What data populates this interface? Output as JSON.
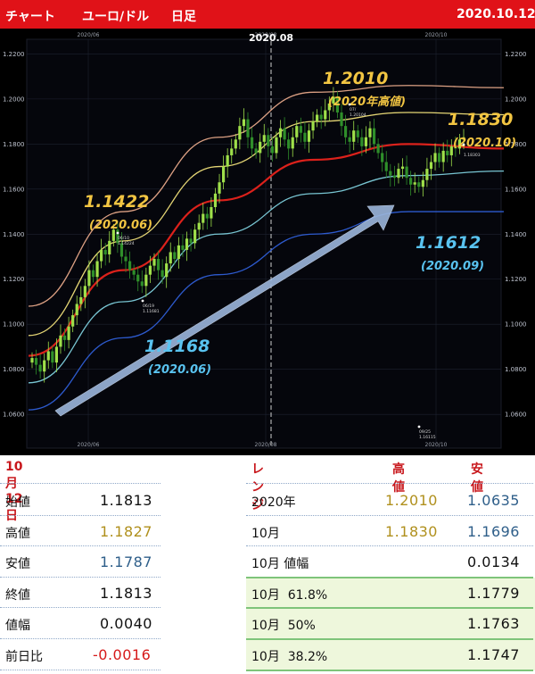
{
  "header": {
    "chart_label": "チャート",
    "pair": "ユーロ/ドル",
    "timeframe": "日足",
    "date": "2020.10.12"
  },
  "chart_data": {
    "type": "candlestick",
    "y_ticks": [
      "1.2200",
      "1.2000",
      "1.1800",
      "1.1600",
      "1.1400",
      "1.1200",
      "1.1000",
      "1.0800",
      "1.0600"
    ],
    "ylim": [
      1.045,
      1.2265
    ],
    "x_date_labels": [
      "2020/06",
      "2020/08",
      "2020/10"
    ],
    "marker_label": "2020.08",
    "closes_path": [
      1.085,
      1.082,
      1.079,
      1.084,
      1.088,
      1.083,
      1.09,
      1.095,
      1.093,
      1.099,
      1.104,
      1.109,
      1.112,
      1.117,
      1.124,
      1.121,
      1.128,
      1.133,
      1.131,
      1.137,
      1.142,
      1.136,
      1.13,
      1.128,
      1.124,
      1.122,
      1.119,
      1.117,
      1.122,
      1.126,
      1.129,
      1.124,
      1.121,
      1.127,
      1.132,
      1.129,
      1.135,
      1.133,
      1.138,
      1.136,
      1.142,
      1.145,
      1.149,
      1.147,
      1.152,
      1.158,
      1.163,
      1.17,
      1.175,
      1.178,
      1.182,
      1.188,
      1.191,
      1.183,
      1.178,
      1.176,
      1.181,
      1.184,
      1.179,
      1.176,
      1.183,
      1.187,
      1.182,
      1.178,
      1.183,
      1.188,
      1.185,
      1.181,
      1.186,
      1.19,
      1.193,
      1.191,
      1.195,
      1.198,
      1.201,
      1.194,
      1.188,
      1.183,
      1.181,
      1.186,
      1.183,
      1.179,
      1.183,
      1.187,
      1.18,
      1.176,
      1.172,
      1.168,
      1.166,
      1.165,
      1.169,
      1.17,
      1.165,
      1.162,
      1.163,
      1.161,
      1.164,
      1.169,
      1.172,
      1.176,
      1.172,
      1.177,
      1.175,
      1.179,
      1.178,
      1.182,
      1.183
    ],
    "bands": [
      {
        "name": "outer-upper",
        "color": "#e8a98a",
        "points": [
          1.108,
          1.15,
          1.183,
          1.203,
          1.206,
          1.205
        ]
      },
      {
        "name": "upper",
        "color": "#f0e07a",
        "points": [
          1.095,
          1.137,
          1.17,
          1.19,
          1.194,
          1.193
        ]
      },
      {
        "name": "middle",
        "color": "#e8231c",
        "points": [
          1.086,
          1.124,
          1.155,
          1.173,
          1.18,
          1.178
        ]
      },
      {
        "name": "lower",
        "color": "#7ed0dd",
        "points": [
          1.074,
          1.11,
          1.14,
          1.158,
          1.166,
          1.168
        ]
      },
      {
        "name": "outer-lower",
        "color": "#2f5fd8",
        "points": [
          1.062,
          1.094,
          1.122,
          1.14,
          1.15,
          1.15
        ]
      }
    ],
    "annotations": [
      {
        "value": "1.1422",
        "date": "(2020.06)",
        "style": "gold"
      },
      {
        "value": "1.2010",
        "date": "(2020年高値)",
        "style": "gold"
      },
      {
        "value": "1.1830",
        "date": "(2020.10)",
        "style": "gold"
      },
      {
        "value": "1.1168",
        "date": "(2020.06)",
        "style": "blue"
      },
      {
        "value": "1.1612",
        "date": "(2020.09)",
        "style": "blue"
      }
    ],
    "point_labels": [
      {
        "date": "06/10",
        "value": "1.14224"
      },
      {
        "date": "07/",
        "value": "1.20104"
      },
      {
        "date": "06/19",
        "value": "1.11681"
      },
      {
        "date": "09/25",
        "value": "1.16115"
      },
      {
        "date": "",
        "value": "1.18303"
      }
    ]
  },
  "left_table": {
    "title": "10月12日",
    "rows": [
      {
        "label": "始値",
        "value": "1.1813",
        "color": "dark"
      },
      {
        "label": "高値",
        "value": "1.1827",
        "color": "gold"
      },
      {
        "label": "安値",
        "value": "1.1787",
        "color": "blue"
      },
      {
        "label": "終値",
        "value": "1.1813",
        "color": "dark"
      },
      {
        "label": "値幅",
        "value": "0.0040",
        "color": "dark"
      },
      {
        "label": "前日比",
        "value": "-0.0016",
        "color": "red"
      }
    ]
  },
  "right_table": {
    "col_range": "レンジ",
    "col_high": "高値",
    "col_low": "安値",
    "rows": [
      {
        "label": "2020年",
        "high": "1.2010",
        "low": "1.0635"
      },
      {
        "label": "10月",
        "high": "1.1830",
        "low": "1.1696"
      },
      {
        "label": "10月 値幅",
        "high": "",
        "low": "0.0134"
      },
      {
        "label": "10月  61.8%",
        "high": "",
        "low": "1.1779"
      },
      {
        "label": "10月  50%",
        "high": "",
        "low": "1.1763"
      },
      {
        "label": "10月  38.2%",
        "high": "",
        "low": "1.1747"
      }
    ]
  },
  "colors": {
    "header_bg": "#e01218",
    "chart_bg": "#000000",
    "candle_up": "#9fe04a",
    "candle_down": "#2f8f2a",
    "arrow": "#9bb6dc"
  }
}
